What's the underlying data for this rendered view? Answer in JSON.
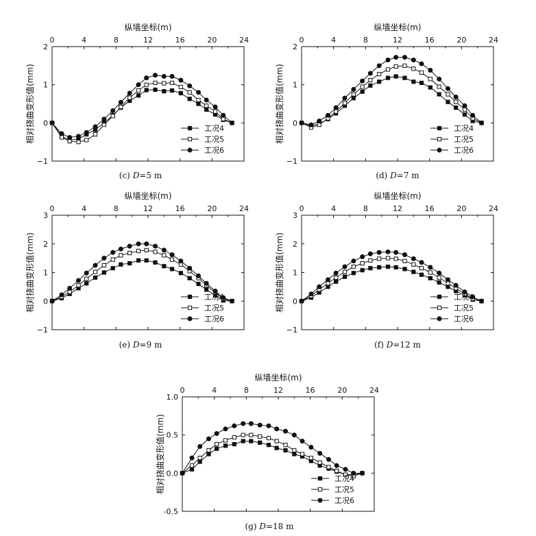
{
  "figure": {
    "legend_entries": [
      "工况4",
      "工况5",
      "工况6"
    ]
  },
  "chart_data": [
    {
      "id": "c",
      "type": "line",
      "caption_prefix": "(c) ",
      "caption_var": "D",
      "caption_suffix": "=5 m",
      "xlabel": "纵墙坐标(m)",
      "ylabel": "相对挠曲变形值(mm)",
      "xlim": [
        0,
        24
      ],
      "ylim": [
        -1,
        2
      ],
      "xticks": [
        0,
        4,
        8,
        12,
        16,
        20,
        24
      ],
      "yticks": [
        -1,
        0,
        1,
        2
      ],
      "legend_position": "bottom-right",
      "x": [
        0,
        1.2,
        2.2,
        3.3,
        4.3,
        5.4,
        6.5,
        7.6,
        8.6,
        9.7,
        10.8,
        11.8,
        12.9,
        14.0,
        15.0,
        16.1,
        17.2,
        18.3,
        19.3,
        20.4,
        21.4,
        22.5
      ],
      "series": [
        {
          "name": "工况4",
          "marker": "square-filled",
          "values": [
            0,
            -0.35,
            -0.45,
            -0.42,
            -0.3,
            -0.18,
            0.0,
            0.2,
            0.4,
            0.58,
            0.72,
            0.86,
            0.87,
            0.83,
            0.85,
            0.78,
            0.63,
            0.5,
            0.35,
            0.22,
            0.08,
            0.0
          ]
        },
        {
          "name": "工况5",
          "marker": "square-open",
          "values": [
            0,
            -0.38,
            -0.48,
            -0.5,
            -0.45,
            -0.3,
            -0.05,
            0.18,
            0.42,
            0.66,
            0.85,
            1.0,
            1.05,
            1.04,
            1.05,
            0.94,
            0.8,
            0.6,
            0.45,
            0.3,
            0.1,
            0.0
          ]
        },
        {
          "name": "工况6",
          "marker": "circle-filled",
          "values": [
            0,
            -0.28,
            -0.38,
            -0.35,
            -0.25,
            -0.1,
            0.1,
            0.32,
            0.54,
            0.78,
            1.0,
            1.18,
            1.25,
            1.22,
            1.22,
            1.12,
            0.97,
            0.8,
            0.6,
            0.42,
            0.2,
            0.0
          ]
        }
      ]
    },
    {
      "id": "d",
      "type": "line",
      "caption_prefix": "(d) ",
      "caption_var": "D",
      "caption_suffix": "=7 m",
      "xlabel": "纵墙坐标(m)",
      "ylabel": "相对挠曲变形值(mm)",
      "xlim": [
        0,
        24
      ],
      "ylim": [
        -1,
        2
      ],
      "xticks": [
        0,
        4,
        8,
        12,
        16,
        20,
        24
      ],
      "yticks": [
        -1,
        0,
        1,
        2
      ],
      "legend_position": "bottom-right",
      "x": [
        0,
        1.2,
        2.2,
        3.3,
        4.3,
        5.4,
        6.5,
        7.6,
        8.6,
        9.7,
        10.8,
        11.8,
        12.9,
        14.0,
        15.0,
        16.1,
        17.2,
        18.3,
        19.3,
        20.4,
        21.4,
        22.5
      ],
      "series": [
        {
          "name": "工况4",
          "marker": "square-filled",
          "values": [
            0,
            -0.08,
            -0.02,
            0.1,
            0.25,
            0.45,
            0.65,
            0.82,
            0.98,
            1.08,
            1.18,
            1.22,
            1.18,
            1.08,
            1.05,
            0.93,
            0.75,
            0.55,
            0.4,
            0.22,
            0.05,
            0.0
          ]
        },
        {
          "name": "工况5",
          "marker": "square-open",
          "values": [
            0,
            -0.12,
            -0.05,
            0.12,
            0.3,
            0.52,
            0.75,
            0.95,
            1.12,
            1.28,
            1.4,
            1.48,
            1.5,
            1.42,
            1.32,
            1.15,
            0.95,
            0.75,
            0.55,
            0.35,
            0.12,
            0.0
          ]
        },
        {
          "name": "工况6",
          "marker": "circle-filled",
          "values": [
            0,
            -0.05,
            0.05,
            0.2,
            0.4,
            0.65,
            0.88,
            1.1,
            1.3,
            1.5,
            1.65,
            1.72,
            1.72,
            1.65,
            1.55,
            1.38,
            1.15,
            0.9,
            0.68,
            0.45,
            0.2,
            0.0
          ]
        }
      ]
    },
    {
      "id": "e",
      "type": "line",
      "caption_prefix": "(e) ",
      "caption_var": "D",
      "caption_suffix": "=9 m",
      "xlabel": "纵墙坐标(m)",
      "ylabel": "相对挠曲变形值(mm)",
      "xlim": [
        0,
        24
      ],
      "ylim": [
        -1,
        3
      ],
      "xticks": [
        0,
        4,
        8,
        12,
        16,
        20,
        24
      ],
      "yticks": [
        -1,
        0,
        1,
        2,
        3
      ],
      "legend_position": "bottom-right",
      "x": [
        0,
        1.2,
        2.2,
        3.3,
        4.3,
        5.4,
        6.5,
        7.6,
        8.6,
        9.7,
        10.8,
        11.8,
        12.9,
        14.0,
        15.0,
        16.1,
        17.2,
        18.3,
        19.3,
        20.4,
        21.4,
        22.5
      ],
      "series": [
        {
          "name": "工况4",
          "marker": "square-filled",
          "values": [
            0,
            0.1,
            0.25,
            0.45,
            0.62,
            0.82,
            1.0,
            1.15,
            1.28,
            1.32,
            1.42,
            1.42,
            1.35,
            1.22,
            1.12,
            0.98,
            0.8,
            0.6,
            0.4,
            0.2,
            0.02,
            0.0
          ]
        },
        {
          "name": "工况5",
          "marker": "square-open",
          "values": [
            0,
            0.15,
            0.32,
            0.55,
            0.78,
            1.02,
            1.25,
            1.45,
            1.6,
            1.68,
            1.75,
            1.78,
            1.72,
            1.6,
            1.45,
            1.28,
            1.05,
            0.8,
            0.55,
            0.3,
            0.08,
            0.0
          ]
        },
        {
          "name": "工况6",
          "marker": "circle-filled",
          "values": [
            0,
            0.22,
            0.45,
            0.72,
            0.98,
            1.25,
            1.5,
            1.7,
            1.82,
            1.92,
            2.0,
            2.0,
            1.92,
            1.78,
            1.62,
            1.4,
            1.15,
            0.88,
            0.62,
            0.35,
            0.12,
            0.0
          ]
        }
      ]
    },
    {
      "id": "f",
      "type": "line",
      "caption_prefix": "(f) ",
      "caption_var": "D",
      "caption_suffix": "=12 m",
      "xlabel": "纵墙坐标(m)",
      "ylabel": "相对挠曲变形值(mm)",
      "xlim": [
        0,
        24
      ],
      "ylim": [
        -1,
        3
      ],
      "xticks": [
        0,
        4,
        8,
        12,
        16,
        20,
        24
      ],
      "yticks": [
        -1,
        0,
        1,
        2,
        3
      ],
      "legend_position": "bottom-right",
      "x": [
        0,
        1.2,
        2.2,
        3.3,
        4.3,
        5.4,
        6.5,
        7.6,
        8.6,
        9.7,
        10.8,
        11.8,
        12.9,
        14.0,
        15.0,
        16.1,
        17.2,
        18.3,
        19.3,
        20.4,
        21.4,
        22.5
      ],
      "series": [
        {
          "name": "工况4",
          "marker": "square-filled",
          "values": [
            0,
            0.12,
            0.3,
            0.5,
            0.68,
            0.85,
            0.98,
            1.08,
            1.15,
            1.18,
            1.2,
            1.18,
            1.12,
            1.02,
            0.92,
            0.8,
            0.65,
            0.5,
            0.35,
            0.2,
            0.05,
            0.0
          ]
        },
        {
          "name": "工况5",
          "marker": "square-open",
          "values": [
            0,
            0.18,
            0.4,
            0.62,
            0.82,
            1.02,
            1.2,
            1.32,
            1.42,
            1.48,
            1.5,
            1.48,
            1.4,
            1.28,
            1.15,
            1.0,
            0.82,
            0.62,
            0.45,
            0.25,
            0.08,
            0.0
          ]
        },
        {
          "name": "工况6",
          "marker": "circle-filled",
          "values": [
            0,
            0.25,
            0.5,
            0.75,
            0.98,
            1.2,
            1.4,
            1.55,
            1.65,
            1.7,
            1.72,
            1.7,
            1.62,
            1.48,
            1.35,
            1.18,
            0.98,
            0.75,
            0.55,
            0.32,
            0.15,
            0.0
          ]
        }
      ]
    },
    {
      "id": "g",
      "type": "line",
      "caption_prefix": "(g) ",
      "caption_var": "D",
      "caption_suffix": "=18 m",
      "xlabel": "纵墙坐标(m)",
      "ylabel": "相对挠曲变形值(mm)",
      "xlim": [
        0,
        24
      ],
      "ylim": [
        -0.5,
        1.0
      ],
      "xticks": [
        0,
        4,
        8,
        12,
        16,
        20,
        24
      ],
      "yticks": [
        -0.5,
        0.0,
        0.5,
        1.0
      ],
      "ytick_labels": [
        "-0.5",
        "0.0",
        "0.5",
        "1.0"
      ],
      "legend_position": "bottom-right",
      "x": [
        0,
        1.2,
        2.2,
        3.3,
        4.3,
        5.4,
        6.5,
        7.6,
        8.6,
        9.7,
        10.8,
        11.8,
        12.9,
        14.0,
        15.0,
        16.1,
        17.2,
        18.3,
        19.3,
        20.4,
        21.4,
        22.5
      ],
      "series": [
        {
          "name": "工况4",
          "marker": "square-filled",
          "values": [
            0,
            0.05,
            0.15,
            0.25,
            0.32,
            0.36,
            0.38,
            0.42,
            0.42,
            0.4,
            0.37,
            0.33,
            0.3,
            0.25,
            0.22,
            0.16,
            0.1,
            0.06,
            0.02,
            -0.02,
            -0.02,
            0.0
          ]
        },
        {
          "name": "工况5",
          "marker": "square-open",
          "values": [
            0,
            0.1,
            0.2,
            0.3,
            0.38,
            0.43,
            0.47,
            0.5,
            0.5,
            0.48,
            0.46,
            0.42,
            0.37,
            0.3,
            0.25,
            0.2,
            0.14,
            0.08,
            0.03,
            -0.02,
            -0.04,
            0.0
          ]
        },
        {
          "name": "工况6",
          "marker": "circle-filled",
          "values": [
            0,
            0.2,
            0.35,
            0.45,
            0.52,
            0.58,
            0.62,
            0.65,
            0.65,
            0.63,
            0.62,
            0.58,
            0.55,
            0.5,
            0.42,
            0.34,
            0.26,
            0.18,
            0.1,
            0.05,
            0.0,
            0.0
          ]
        }
      ]
    }
  ]
}
